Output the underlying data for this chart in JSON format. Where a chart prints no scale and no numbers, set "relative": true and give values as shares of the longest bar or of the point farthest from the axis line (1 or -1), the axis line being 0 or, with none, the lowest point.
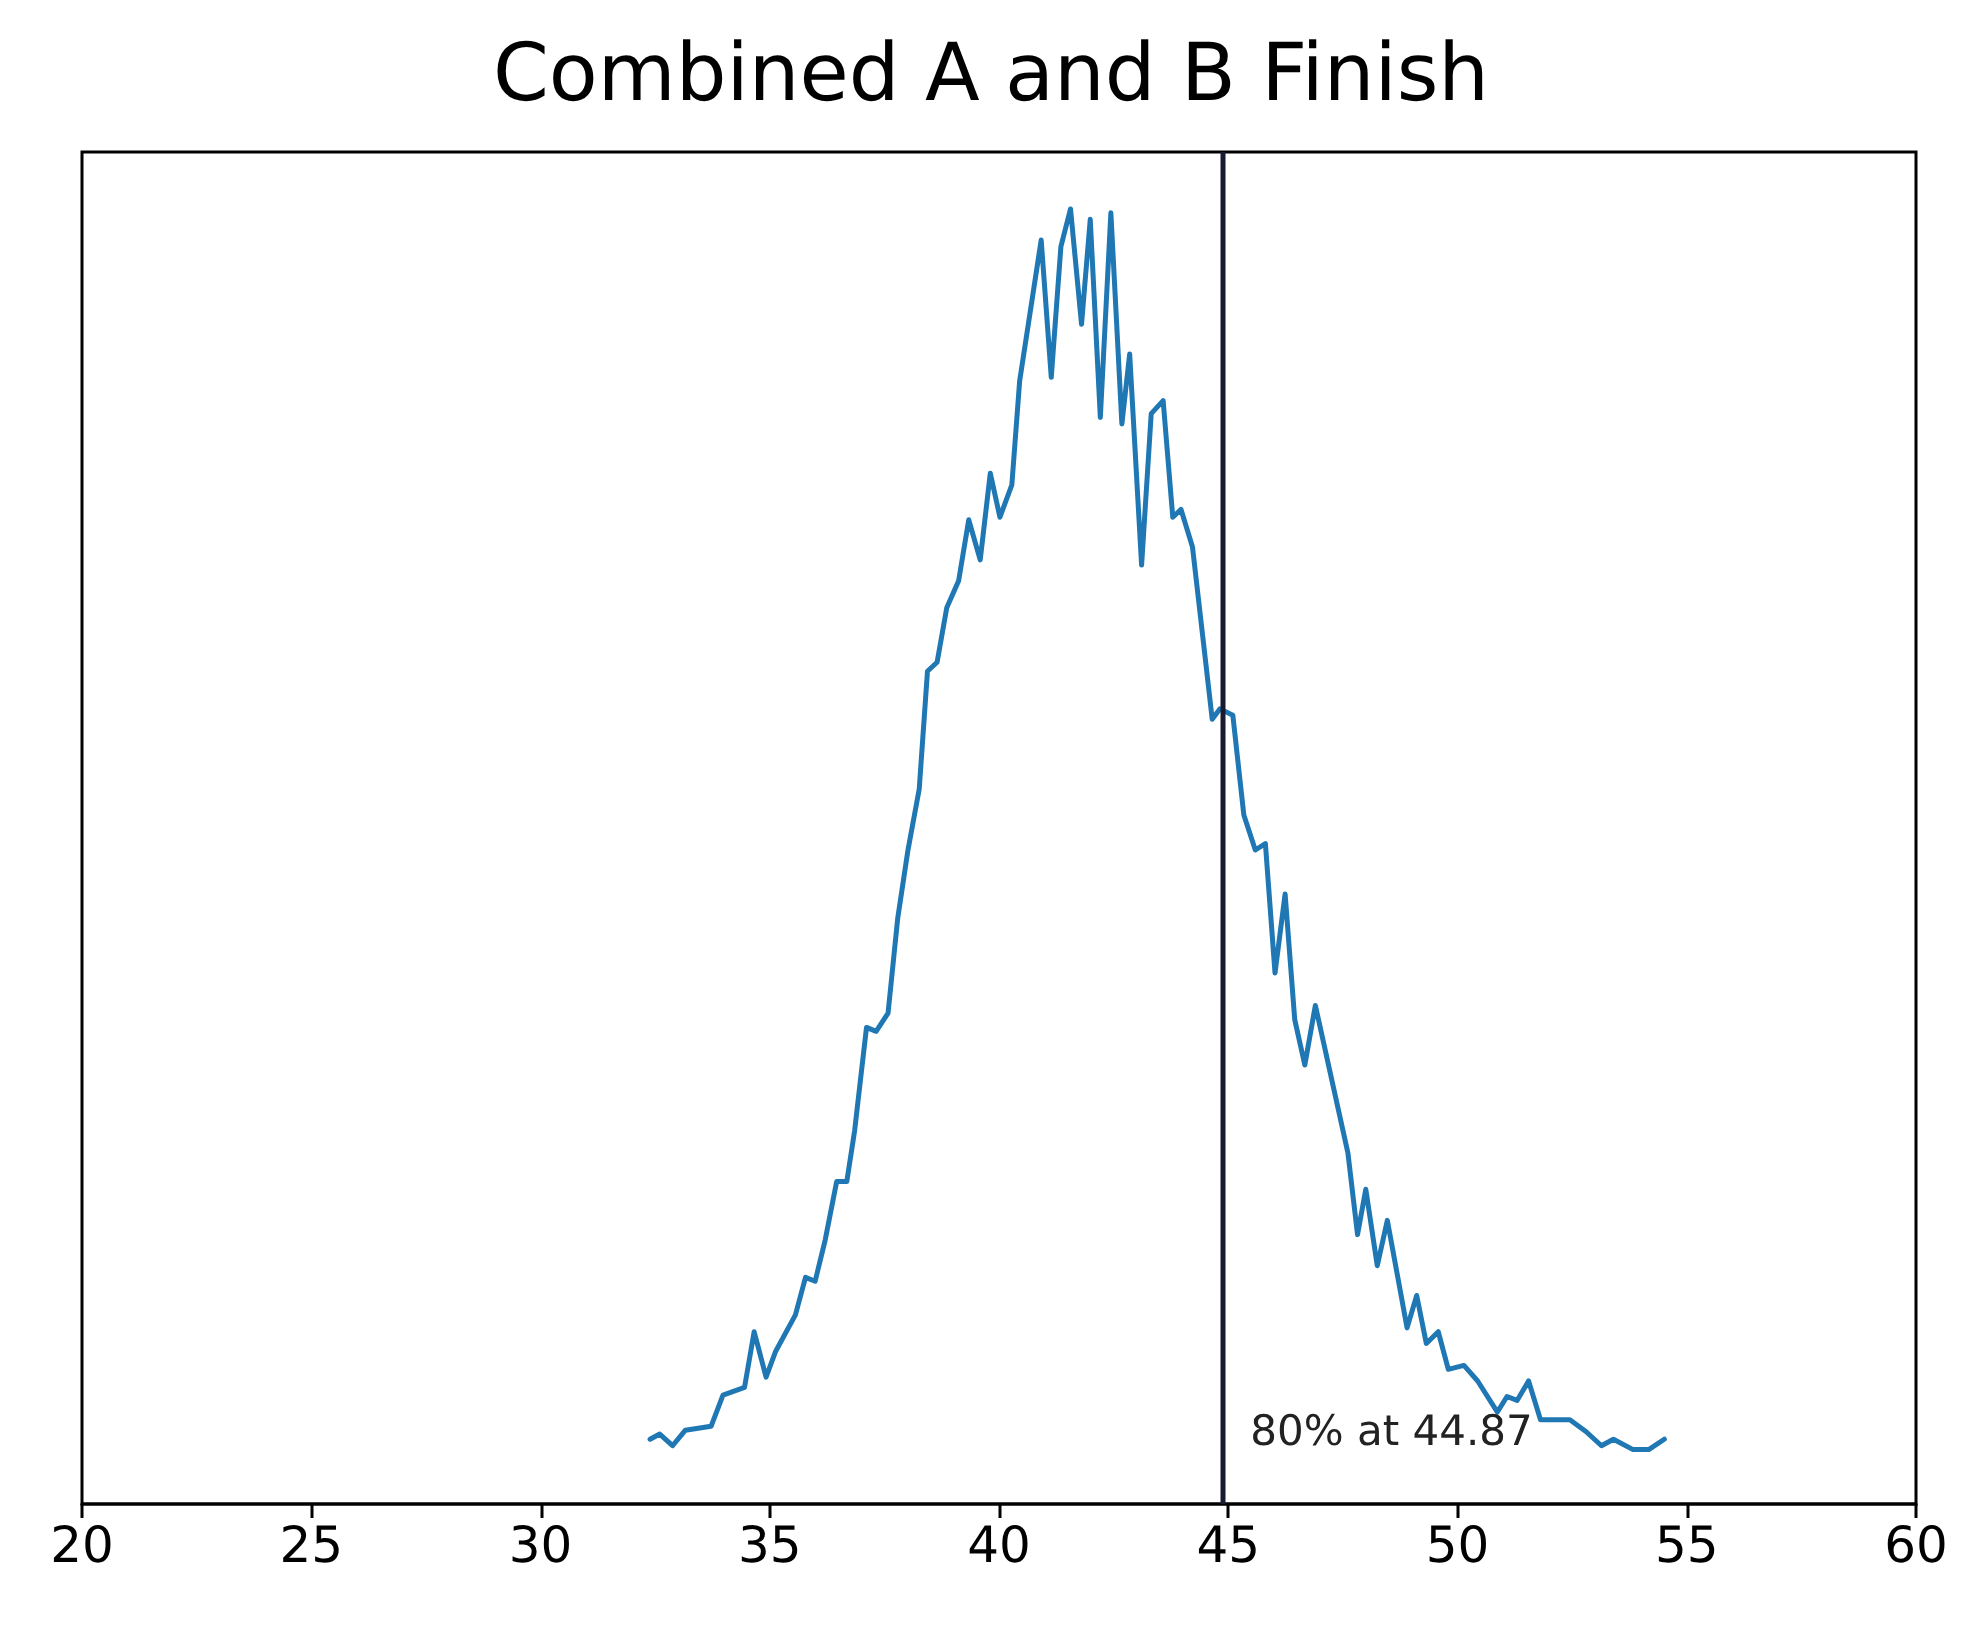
{
  "chart_data": {
    "type": "line",
    "title": "Combined A and B Finish",
    "relative": true,
    "xlim": [
      20,
      60
    ],
    "xticks": [
      20,
      25,
      30,
      35,
      40,
      45,
      50,
      55,
      60
    ],
    "grid": false,
    "marker": "none",
    "line_style": "solid",
    "series": [
      {
        "color": "#1f77b4",
        "x": [
          32.39,
          32.6,
          32.88,
          33.16,
          33.72,
          33.98,
          34.45,
          34.66,
          34.92,
          35.13,
          35.56,
          35.78,
          35.99,
          36.21,
          36.46,
          36.68,
          36.85,
          37.11,
          37.32,
          37.58,
          37.79,
          38.01,
          38.26,
          38.44,
          38.65,
          38.86,
          39.12,
          39.34,
          39.59,
          39.81,
          40.02,
          40.28,
          40.45,
          40.92,
          41.14,
          41.35,
          41.56,
          41.8,
          41.99,
          42.21,
          42.44,
          42.68,
          42.85,
          43.11,
          43.32,
          43.58,
          43.79,
          43.97,
          44.22,
          44.44,
          44.65,
          44.82,
          45.1,
          45.34,
          45.59,
          45.81,
          46.02,
          46.24,
          46.45,
          46.67,
          46.9,
          47.61,
          47.82,
          48.0,
          48.25,
          48.47,
          48.9,
          49.11,
          49.32,
          49.58,
          49.8,
          50.14,
          50.44,
          50.87,
          51.08,
          51.3,
          51.55,
          51.81,
          52.45,
          52.8,
          53.14,
          53.4,
          53.83,
          54.17,
          54.51
        ],
        "values": [
          0.05,
          0.054,
          0.045,
          0.057,
          0.06,
          0.084,
          0.09,
          0.133,
          0.098,
          0.118,
          0.146,
          0.175,
          0.172,
          0.204,
          0.249,
          0.249,
          0.288,
          0.368,
          0.365,
          0.379,
          0.452,
          0.504,
          0.552,
          0.643,
          0.65,
          0.692,
          0.713,
          0.76,
          0.729,
          0.796,
          0.762,
          0.787,
          0.867,
          0.976,
          0.87,
          0.971,
          1,
          0.911,
          0.992,
          0.839,
          0.997,
          0.834,
          0.888,
          0.725,
          0.842,
          0.852,
          0.762,
          0.768,
          0.739,
          0.671,
          0.606,
          0.614,
          0.609,
          0.532,
          0.505,
          0.51,
          0.41,
          0.471,
          0.374,
          0.339,
          0.385,
          0.271,
          0.208,
          0.243,
          0.184,
          0.219,
          0.136,
          0.161,
          0.124,
          0.133,
          0.104,
          0.107,
          0.095,
          0.071,
          0.083,
          0.08,
          0.095,
          0.065,
          0.065,
          0.056,
          0.045,
          0.05,
          0.042,
          0.042,
          0.05
        ]
      }
    ],
    "ref_lines": [
      {
        "axis": "x",
        "value": 44.87,
        "label": "80% at 44.87",
        "color": "#1a1a2e",
        "line_style": "solid"
      }
    ]
  }
}
